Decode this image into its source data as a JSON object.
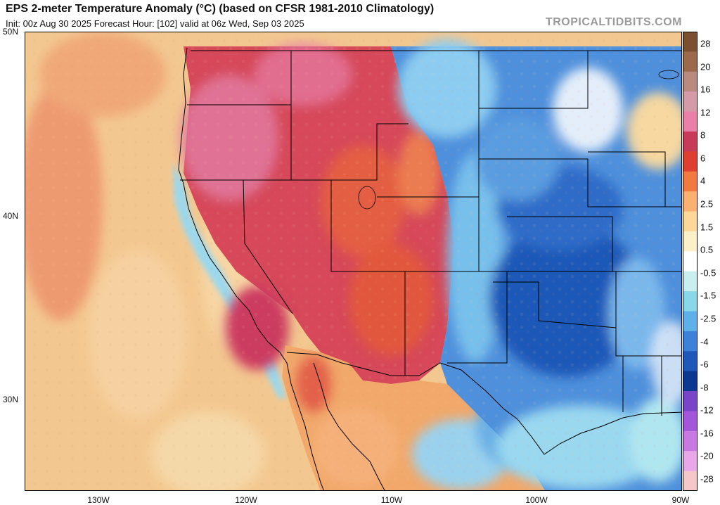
{
  "header": {
    "title": "EPS 2-meter Temperature Anomaly (°C) (based on CFSR 1981-2010 Climatology)",
    "subtitle": "Init: 00z Aug 30 2025   Forecast Hour: [102]   valid at 06z Wed, Sep 03 2025",
    "watermark": "TROPICALTIDBITS.COM"
  },
  "axes": {
    "lat_labels": [
      "50N",
      "40N",
      "30N"
    ],
    "lon_labels": [
      "130W",
      "120W",
      "110W",
      "100W",
      "90W"
    ]
  },
  "colorbar": {
    "labels": [
      "28",
      "20",
      "16",
      "12",
      "8",
      "6",
      "4",
      "2.5",
      "1.5",
      "0.5",
      "-0.5",
      "-1.5",
      "-2.5",
      "-4",
      "-6",
      "-8",
      "-12",
      "-16",
      "-20",
      "-28"
    ],
    "colors": [
      "#7a5030",
      "#9a6a4a",
      "#b88a80",
      "#d49aa8",
      "#e880a8",
      "#c83a5a",
      "#dd4030",
      "#f07a40",
      "#fab070",
      "#fcd898",
      "#fbf0c8",
      "#ffffff",
      "#c8eef0",
      "#88d8e8",
      "#5eb0e8",
      "#3c82d8",
      "#1e58b8",
      "#0c3890",
      "#7a44c8",
      "#a456d8",
      "#c878e0",
      "#e8a8e8",
      "#f4c8c8"
    ]
  },
  "colors": {
    "ocean_warm": "#f3c890",
    "pacific_hot": "#ee9a70",
    "west_hot": "#d6485a",
    "pink_hot": "#e07aa0",
    "plains_cool": "#4e90dc",
    "core_cold": "#1e58b8",
    "gulf_light": "#9ad8f0",
    "state_lines": "#000000"
  }
}
